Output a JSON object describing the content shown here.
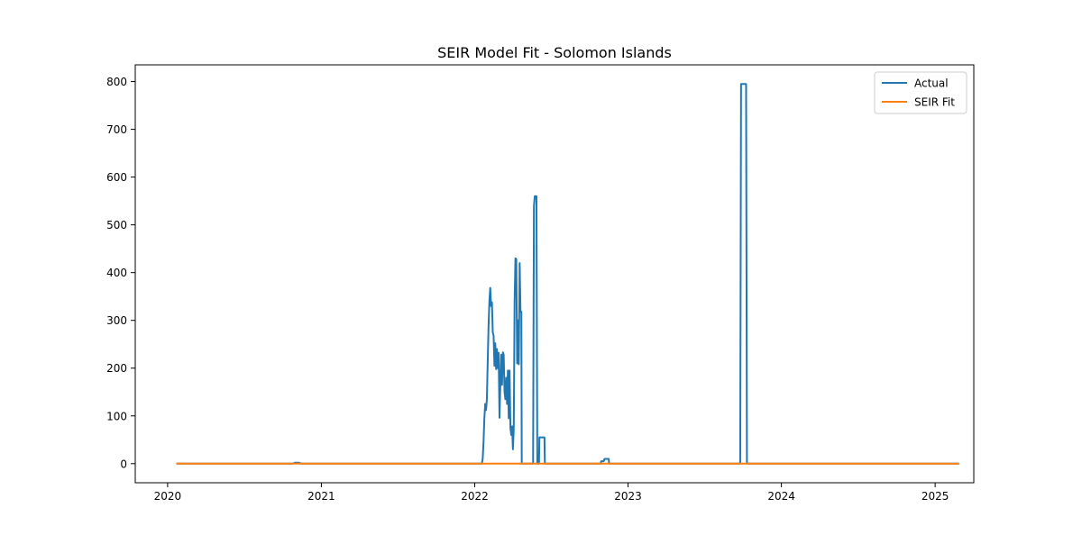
{
  "chart_data": {
    "type": "line",
    "title": "SEIR Model Fit - Solomon Islands",
    "xlabel": "",
    "ylabel": "",
    "x_type": "date",
    "xlim": [
      "2019-10-16",
      "2025-04-03"
    ],
    "ylim": [
      -40,
      835
    ],
    "x_ticks": [
      {
        "date": "2020-01-01",
        "label": "2020"
      },
      {
        "date": "2021-01-01",
        "label": "2021"
      },
      {
        "date": "2022-01-01",
        "label": "2022"
      },
      {
        "date": "2023-01-01",
        "label": "2023"
      },
      {
        "date": "2024-01-01",
        "label": "2024"
      },
      {
        "date": "2025-01-01",
        "label": "2025"
      }
    ],
    "y_ticks": [
      0,
      100,
      200,
      300,
      400,
      500,
      600,
      700,
      800
    ],
    "grid": false,
    "legend_position": "upper right",
    "series": [
      {
        "name": "Actual",
        "color": "#1f77b4",
        "points": [
          [
            "2020-01-22",
            0
          ],
          [
            "2020-10-25",
            0
          ],
          [
            "2020-10-30",
            2
          ],
          [
            "2020-11-08",
            2
          ],
          [
            "2020-11-15",
            0
          ],
          [
            "2022-01-14",
            0
          ],
          [
            "2022-01-18",
            0
          ],
          [
            "2022-01-20",
            10
          ],
          [
            "2022-01-22",
            45
          ],
          [
            "2022-01-24",
            95
          ],
          [
            "2022-01-26",
            125
          ],
          [
            "2022-01-28",
            112
          ],
          [
            "2022-01-30",
            135
          ],
          [
            "2022-02-01",
            215
          ],
          [
            "2022-02-03",
            290
          ],
          [
            "2022-02-05",
            340
          ],
          [
            "2022-02-07",
            368
          ],
          [
            "2022-02-09",
            330
          ],
          [
            "2022-02-11",
            338
          ],
          [
            "2022-02-13",
            275
          ],
          [
            "2022-02-15",
            268
          ],
          [
            "2022-02-17",
            205
          ],
          [
            "2022-02-19",
            252
          ],
          [
            "2022-02-21",
            198
          ],
          [
            "2022-02-23",
            240
          ],
          [
            "2022-02-25",
            200
          ],
          [
            "2022-02-27",
            232
          ],
          [
            "2022-03-01",
            96
          ],
          [
            "2022-03-03",
            165
          ],
          [
            "2022-03-05",
            228
          ],
          [
            "2022-03-07",
            165
          ],
          [
            "2022-03-09",
            233
          ],
          [
            "2022-03-11",
            228
          ],
          [
            "2022-03-13",
            150
          ],
          [
            "2022-03-15",
            135
          ],
          [
            "2022-03-17",
            180
          ],
          [
            "2022-03-19",
            125
          ],
          [
            "2022-03-21",
            195
          ],
          [
            "2022-03-23",
            95
          ],
          [
            "2022-03-25",
            195
          ],
          [
            "2022-03-27",
            75
          ],
          [
            "2022-03-29",
            60
          ],
          [
            "2022-03-31",
            78
          ],
          [
            "2022-04-02",
            30
          ],
          [
            "2022-04-04",
            75
          ],
          [
            "2022-04-06",
            340
          ],
          [
            "2022-04-08",
            430
          ],
          [
            "2022-04-10",
            428
          ],
          [
            "2022-04-12",
            210
          ],
          [
            "2022-04-14",
            300
          ],
          [
            "2022-04-16",
            208
          ],
          [
            "2022-04-18",
            420
          ],
          [
            "2022-04-20",
            318
          ],
          [
            "2022-04-22",
            318
          ],
          [
            "2022-04-23",
            0
          ],
          [
            "2022-05-20",
            0
          ],
          [
            "2022-05-22",
            540
          ],
          [
            "2022-05-24",
            560
          ],
          [
            "2022-05-28",
            560
          ],
          [
            "2022-05-30",
            0
          ],
          [
            "2022-06-03",
            0
          ],
          [
            "2022-06-04",
            55
          ],
          [
            "2022-06-16",
            55
          ],
          [
            "2022-06-17",
            0
          ],
          [
            "2022-10-28",
            0
          ],
          [
            "2022-10-29",
            5
          ],
          [
            "2022-11-04",
            5
          ],
          [
            "2022-11-06",
            10
          ],
          [
            "2022-11-16",
            10
          ],
          [
            "2022-11-17",
            0
          ],
          [
            "2023-09-25",
            0
          ],
          [
            "2023-09-27",
            795
          ],
          [
            "2023-10-09",
            795
          ],
          [
            "2023-10-11",
            0
          ],
          [
            "2025-02-27",
            0
          ]
        ]
      },
      {
        "name": "SEIR Fit",
        "color": "#ff7f0e",
        "points": [
          [
            "2020-01-22",
            0
          ],
          [
            "2025-02-27",
            0
          ]
        ]
      }
    ]
  }
}
